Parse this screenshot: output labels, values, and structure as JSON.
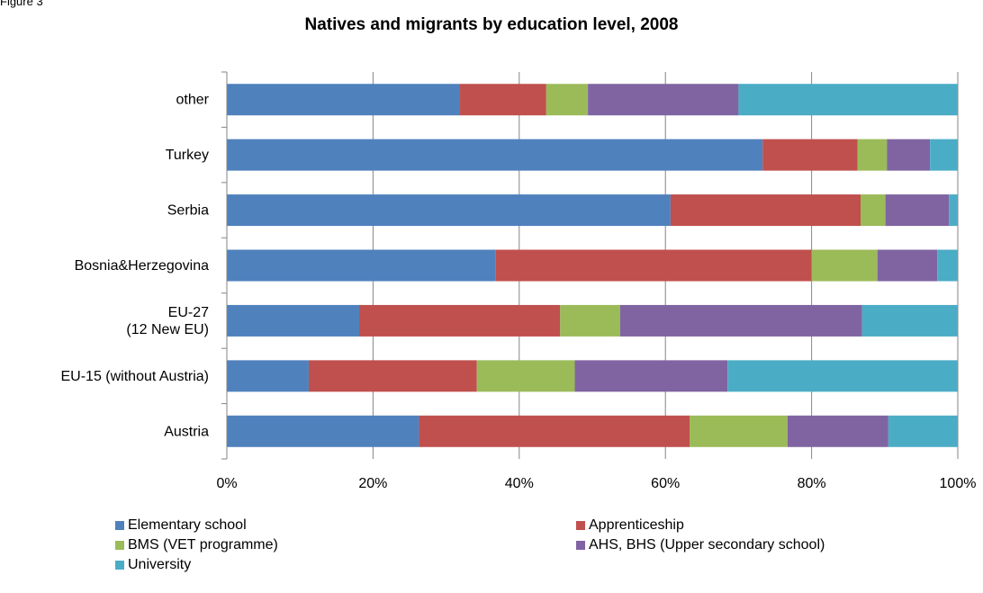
{
  "page": {
    "corner_label": "Figure 3"
  },
  "chart_data": {
    "type": "bar",
    "orientation": "horizontal",
    "stacked": "percent",
    "title": "Natives and migrants by education level, 2008",
    "xlabel": "",
    "ylabel": "",
    "categories": [
      "Austria",
      "EU-15 (without Austria)",
      "EU-27\n(12 New EU)",
      "Bosnia&Herzegovina",
      "Serbia",
      "Turkey",
      "other"
    ],
    "xlim": [
      0,
      100
    ],
    "x_ticks": [
      "0%",
      "20%",
      "40%",
      "60%",
      "80%",
      "100%"
    ],
    "grid": "vertical",
    "legend_position": "bottom",
    "series": [
      {
        "name": "Elementary school",
        "color": "#4F81BD",
        "values": [
          26.3,
          11.2,
          18.1,
          36.8,
          60.7,
          73.3,
          31.9
        ]
      },
      {
        "name": "Apprenticeship",
        "color": "#C0504D",
        "values": [
          37.0,
          23.0,
          27.5,
          43.2,
          26.0,
          13.0,
          11.8
        ]
      },
      {
        "name": "BMS (VET programme)",
        "color": "#9BBB59",
        "values": [
          13.4,
          13.4,
          8.2,
          9.0,
          3.4,
          4.0,
          5.7
        ]
      },
      {
        "name": "AHS, BHS (Upper secondary school)",
        "color": "#8064A2",
        "values": [
          13.8,
          20.9,
          33.1,
          8.2,
          8.7,
          5.9,
          20.6
        ]
      },
      {
        "name": "University",
        "color": "#4BACC6",
        "values": [
          9.5,
          31.5,
          13.1,
          2.8,
          1.2,
          3.8,
          30.0
        ]
      }
    ]
  }
}
